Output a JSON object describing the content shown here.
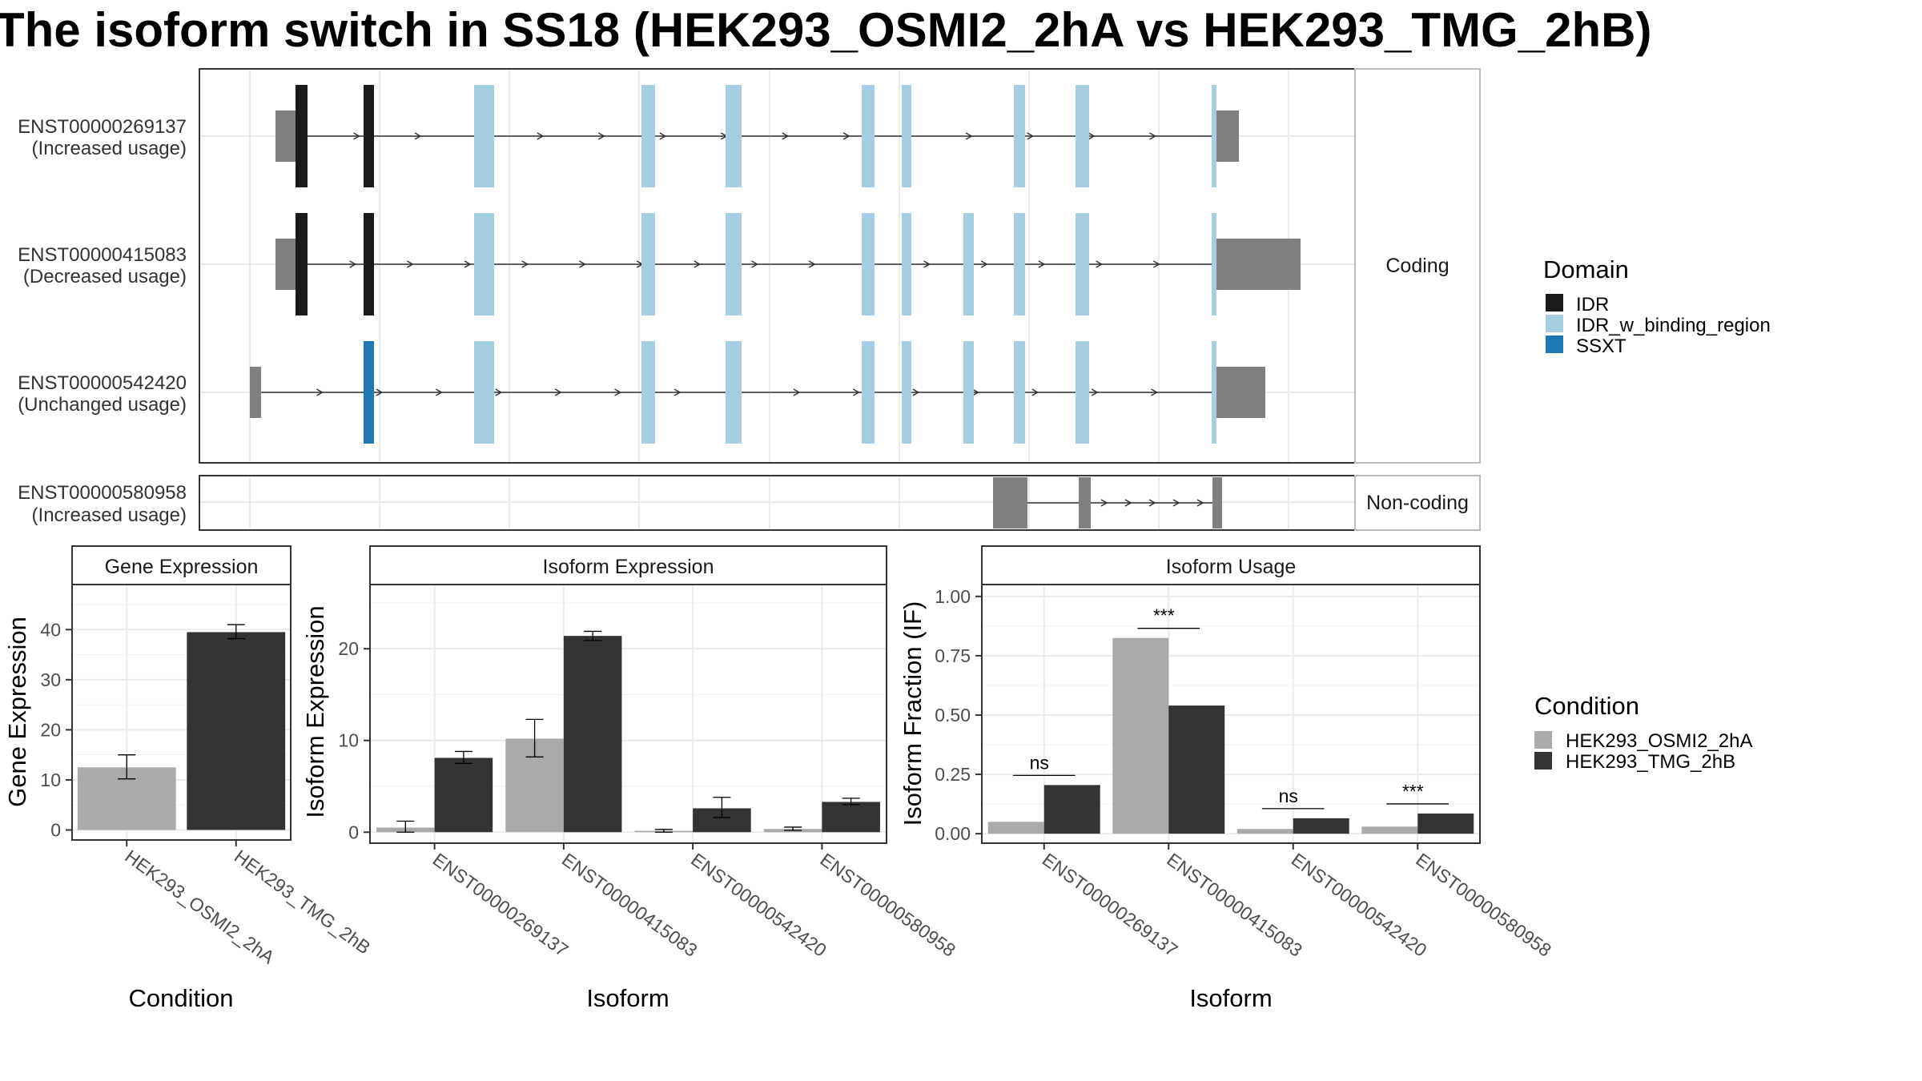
{
  "title": "The isoform switch in SS18 (HEK293_OSMI2_2hA vs HEK293_TMG_2hB)",
  "colors": {
    "IDR": "#1a1a1a",
    "IDR_w_binding_region": "#a6cee3",
    "SSXT": "#1f78b4",
    "utr": "#808080",
    "HEK293_OSMI2_2hA": "#aaaaaa",
    "HEK293_TMG_2hB": "#333333"
  },
  "chart_data": [
    {
      "type": "gene-structure",
      "facets": [
        "Coding",
        "Non-coding"
      ],
      "transcripts": [
        {
          "id": "ENST00000269137",
          "usage": "(Increased usage)",
          "facet": "Coding"
        },
        {
          "id": "ENST00000415083",
          "usage": "(Decreased usage)",
          "facet": "Coding"
        },
        {
          "id": "ENST00000542420",
          "usage": "(Unchanged usage)",
          "facet": "Coding"
        },
        {
          "id": "ENST00000580958",
          "usage": "(Increased usage)",
          "facet": "Non-coding"
        }
      ],
      "legend": {
        "title": "Domain",
        "items": [
          "IDR",
          "IDR_w_binding_region",
          "SSXT"
        ]
      }
    },
    {
      "type": "bar",
      "strip": "Gene Expression",
      "xlabel": "Condition",
      "ylabel": "Gene Expression",
      "categories": [
        "HEK293_OSMI2_2hA",
        "HEK293_TMG_2hB"
      ],
      "values": [
        12.5,
        39.5
      ],
      "errors": [
        [
          10.2,
          15.0
        ],
        [
          38.2,
          41.0
        ]
      ],
      "ylim": [
        -2,
        49
      ],
      "yticks": [
        "0",
        "10",
        "20",
        "30",
        "40"
      ]
    },
    {
      "type": "bar",
      "strip": "Isoform Expression",
      "xlabel": "Isoform",
      "ylabel": "Isoform Expression",
      "categories": [
        "ENST00000269137",
        "ENST00000415083",
        "ENST00000542420",
        "ENST00000580958"
      ],
      "series": [
        {
          "name": "HEK293_OSMI2_2hA",
          "values": [
            0.5,
            10.2,
            0.15,
            0.35
          ],
          "errors": [
            [
              0.0,
              1.2
            ],
            [
              8.2,
              12.3
            ],
            [
              0.0,
              0.3
            ],
            [
              0.2,
              0.55
            ]
          ]
        },
        {
          "name": "HEK293_TMG_2hB",
          "values": [
            8.1,
            21.4,
            2.6,
            3.3
          ],
          "errors": [
            [
              7.5,
              8.8
            ],
            [
              20.9,
              21.9
            ],
            [
              1.6,
              3.8
            ],
            [
              3.0,
              3.7
            ]
          ]
        }
      ],
      "ylim": [
        -1.2,
        27
      ],
      "yticks": [
        "0",
        "10",
        "20"
      ]
    },
    {
      "type": "bar",
      "strip": "Isoform Usage",
      "xlabel": "Isoform",
      "ylabel": "Isoform Fraction (IF)",
      "categories": [
        "ENST00000269137",
        "ENST00000415083",
        "ENST00000542420",
        "ENST00000580958"
      ],
      "series": [
        {
          "name": "HEK293_OSMI2_2hA",
          "values": [
            0.05,
            0.825,
            0.02,
            0.03
          ]
        },
        {
          "name": "HEK293_TMG_2hB",
          "values": [
            0.205,
            0.54,
            0.065,
            0.085
          ]
        }
      ],
      "significance": [
        "ns",
        "***",
        "ns",
        "***"
      ],
      "ylim": [
        -0.04,
        1.05
      ],
      "yticks": [
        "0.00",
        "0.25",
        "0.50",
        "0.75",
        "1.00"
      ]
    }
  ],
  "condition_legend": {
    "title": "Condition",
    "items": [
      "HEK293_OSMI2_2hA",
      "HEK293_TMG_2hB"
    ]
  }
}
